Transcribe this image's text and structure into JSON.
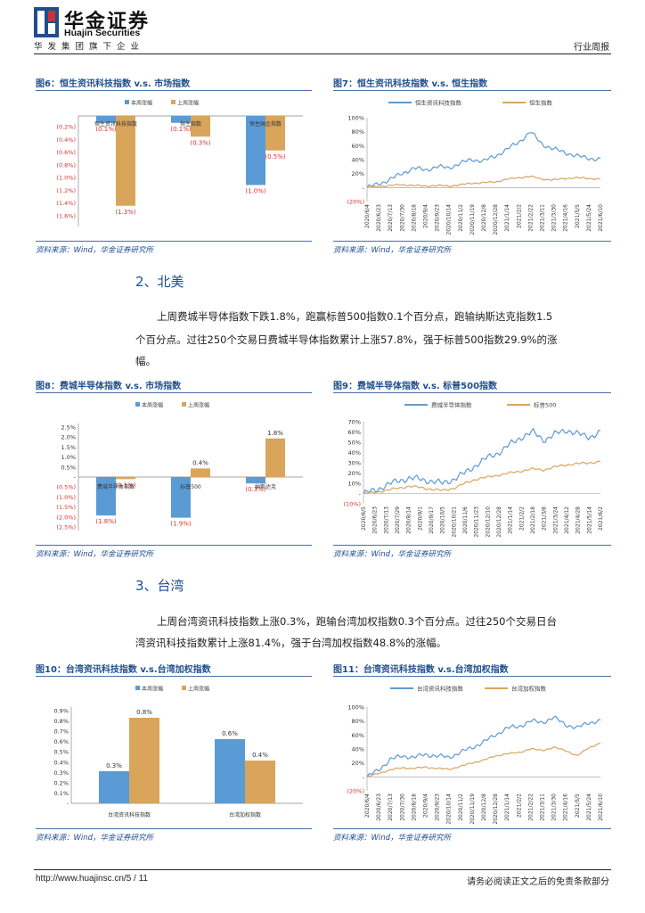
{
  "header": {
    "logo_cn": "华金证券",
    "logo_en": "Huajin Securities",
    "tagline": "华发集团旗下企业",
    "report_type": "行业周报"
  },
  "colors": {
    "blue": "#5b9bd5",
    "orange": "#d9a55b",
    "red": "#e03030",
    "title": "#1f4e8c"
  },
  "figures": [
    {
      "title": "图6：恒生资讯科技指数 v.s. 市场指数",
      "source": "资料来源：Wind，华金证券研究所"
    },
    {
      "title": "图7：恒生资讯科技指数 v.s. 恒生指数",
      "source": "资料来源：Wind，华金证券研究所"
    },
    {
      "title": "图8：费城半导体指数 v.s. 市场指数",
      "source": "资料来源：Wind，华金证券研究所"
    },
    {
      "title": "图9：费城半导体指数 v.s. 标普500指数",
      "source": "资料来源：Wind，华金证券研究所"
    },
    {
      "title": "图10：台湾资讯科技指数 v.s.台湾加权指数",
      "source": "资料来源：Wind，华金证券研究所"
    },
    {
      "title": "图11：台湾资讯科技指数 v.s.台湾加权指数",
      "source": "资料来源：Wind，华金证券研究所"
    }
  ],
  "sections": [
    {
      "heading": "2、北美",
      "para1": "上周费城半导体指数下跌1.8%，跑赢标普500指数0.1个百分点，跑输纳斯达克指数1.5",
      "para2": "个百分点。过往250个交易日费城半导体指数累计上涨57.8%，强于标普500指数29.9%的涨",
      "para3": "幅。"
    },
    {
      "heading": "3、台湾",
      "para1": "上周台湾资讯科技指数上涨0.3%，跑输台湾加权指数0.3个百分点。过往250个交易日台",
      "para2": "湾资讯科技指数累计上涨81.4%，强于台湾加权指数48.8%的涨幅。"
    }
  ],
  "footer": {
    "url": "http://www.huajinsc.cn/5 / 11",
    "note": "请务必阅读正文之后的免责条款部分"
  },
  "chart_data": [
    {
      "id": "fig6",
      "type": "bar",
      "legend": [
        "本周涨幅",
        "上周涨幅"
      ],
      "categories": [
        "恒生资讯科技指数",
        "恒生指数",
        "恒生国企指数"
      ],
      "series": [
        {
          "name": "本周涨幅",
          "values": [
            -0.1,
            -0.1,
            -1.0
          ]
        },
        {
          "name": "上周涨幅",
          "values": [
            -1.3,
            -0.3,
            -0.5
          ]
        }
      ],
      "data_labels": [
        [
          "(0.1%)",
          "(1.3%)"
        ],
        [
          "(0.1%)",
          "(0.3%)"
        ],
        [
          "(1.0%)",
          "(0.5%)"
        ]
      ],
      "ylim": [
        -1.6,
        0.0
      ],
      "yticks": [
        "(0.2%)",
        "(0.4%)",
        "(0.6%)",
        "(0.8%)",
        "(1.0%)",
        "(1.2%)",
        "(1.4%)",
        "(1.6%)"
      ]
    },
    {
      "id": "fig7",
      "type": "line",
      "legend": [
        "恒生资讯科技指数",
        "恒生指数"
      ],
      "yticks": [
        "100%",
        "80%",
        "60%",
        "40%",
        "20%",
        "-",
        "(20%)"
      ],
      "ylim": [
        -20,
        100
      ],
      "xlabels": [
        "2020/6/4",
        "2020/6/23",
        "2020/7/13",
        "2020/7/30",
        "2020/8/18",
        "2020/9/4",
        "2020/9/23",
        "2020/10/14",
        "2020/11/2",
        "2020/11/19",
        "2020/12/8",
        "2020/12/28",
        "2021/1/14",
        "2021/2/2",
        "2021/2/22",
        "2021/3/11",
        "2021/3/30",
        "2021/4/16",
        "2021/5/5",
        "2021/5/24",
        "2021/6/10"
      ],
      "series": [
        {
          "name": "恒生资讯科技指数",
          "values": [
            0,
            5,
            12,
            20,
            28,
            25,
            30,
            28,
            35,
            40,
            38,
            45,
            55,
            65,
            80,
            62,
            55,
            50,
            45,
            42,
            40
          ]
        },
        {
          "name": "恒生指数",
          "values": [
            0,
            1,
            3,
            4,
            3,
            2,
            3,
            2,
            4,
            6,
            7,
            8,
            12,
            14,
            16,
            12,
            11,
            13,
            14,
            13,
            12
          ]
        }
      ]
    },
    {
      "id": "fig8",
      "type": "bar",
      "legend": [
        "本周涨幅",
        "上周涨幅"
      ],
      "categories": [
        "费城半导体指数",
        "标普500",
        "纳斯达克"
      ],
      "series": [
        {
          "name": "本周涨幅",
          "values": [
            -1.8,
            -1.9,
            -0.3
          ]
        },
        {
          "name": "上周涨幅",
          "values": [
            -0.1,
            0.4,
            1.8
          ]
        }
      ],
      "data_labels": [
        [
          "(1.8%)",
          "(0.1%)"
        ],
        [
          "(1.9%)",
          "0.4%"
        ],
        [
          "(0.3%)",
          "1.8%"
        ]
      ],
      "ylim": [
        -2.5,
        2.5
      ],
      "yticks": [
        "2.5%",
        "2.0%",
        "1.5%",
        "1.0%",
        "0.5%",
        "-",
        "(0.5%)",
        "(1.0%)",
        "(1.5%)",
        "(2.0%)",
        "(2.5%)"
      ]
    },
    {
      "id": "fig9",
      "type": "line",
      "legend": [
        "费城半导体指数",
        "标普500"
      ],
      "yticks": [
        "70%",
        "60%",
        "50%",
        "40%",
        "30%",
        "20%",
        "10%",
        "-",
        "(10%)"
      ],
      "ylim": [
        -10,
        70
      ],
      "xlabels": [
        "2020/6/5",
        "2020/6/23",
        "2020/7/13",
        "2020/7/29",
        "2020/8/14",
        "2020/9/1",
        "2020/9/17",
        "2020/10/5",
        "2020/10/21",
        "2020/11/6",
        "2020/11/23",
        "2020/12/10",
        "2020/12/28",
        "2021/1/14",
        "2021/2/2",
        "2021/2/18",
        "2021/3/8",
        "2021/3/24",
        "2021/4/12",
        "2021/4/28",
        "2021/5/14",
        "2021/6/2"
      ],
      "series": [
        {
          "name": "费城半导体指数",
          "values": [
            0,
            3,
            8,
            12,
            15,
            14,
            12,
            10,
            14,
            20,
            28,
            35,
            40,
            48,
            55,
            60,
            52,
            58,
            62,
            58,
            55,
            60
          ]
        },
        {
          "name": "标普500",
          "values": [
            0,
            1,
            3,
            5,
            7,
            6,
            4,
            3,
            5,
            10,
            14,
            16,
            18,
            20,
            22,
            24,
            23,
            26,
            28,
            29,
            30,
            31
          ]
        }
      ]
    },
    {
      "id": "fig10",
      "type": "bar",
      "legend": [
        "本周涨幅",
        "上周涨幅"
      ],
      "categories": [
        "台湾资讯科技指数",
        "台湾加权指数"
      ],
      "series": [
        {
          "name": "本周涨幅",
          "values": [
            0.3,
            0.6
          ]
        },
        {
          "name": "上周涨幅",
          "values": [
            0.8,
            0.4
          ]
        }
      ],
      "data_labels": [
        [
          "0.3%",
          "0.8%"
        ],
        [
          "0.6%",
          "0.4%"
        ]
      ],
      "ylim": [
        0,
        0.9
      ],
      "yticks": [
        "0.9%",
        "0.8%",
        "0.7%",
        "0.6%",
        "0.5%",
        "0.4%",
        "0.3%",
        "0.2%",
        "0.1%",
        "-"
      ]
    },
    {
      "id": "fig11",
      "type": "line",
      "legend": [
        "台湾资讯科技指数",
        "台湾加权指数"
      ],
      "yticks": [
        "100%",
        "80%",
        "60%",
        "40%",
        "20%",
        "-",
        "(20%)"
      ],
      "ylim": [
        -20,
        100
      ],
      "xlabels": [
        "2020/6/4",
        "2020/6/23",
        "2020/7/13",
        "2020/7/30",
        "2020/8/18",
        "2020/9/4",
        "2020/9/23",
        "2020/10/14",
        "2020/11/2",
        "2020/11/19",
        "2020/12/8",
        "2020/12/28",
        "2021/1/14",
        "2021/2/2",
        "2021/2/22",
        "2021/3/11",
        "2021/3/30",
        "2021/4/16",
        "2021/5/5",
        "2021/5/24",
        "2021/6/10"
      ],
      "series": [
        {
          "name": "台湾资讯科技指数",
          "values": [
            0,
            10,
            25,
            30,
            28,
            32,
            30,
            28,
            35,
            42,
            50,
            60,
            70,
            72,
            80,
            78,
            85,
            75,
            70,
            78,
            80
          ]
        },
        {
          "name": "台湾加权指数",
          "values": [
            0,
            5,
            10,
            13,
            12,
            14,
            12,
            11,
            15,
            20,
            24,
            30,
            33,
            35,
            40,
            38,
            42,
            38,
            30,
            42,
            48
          ]
        }
      ]
    }
  ]
}
